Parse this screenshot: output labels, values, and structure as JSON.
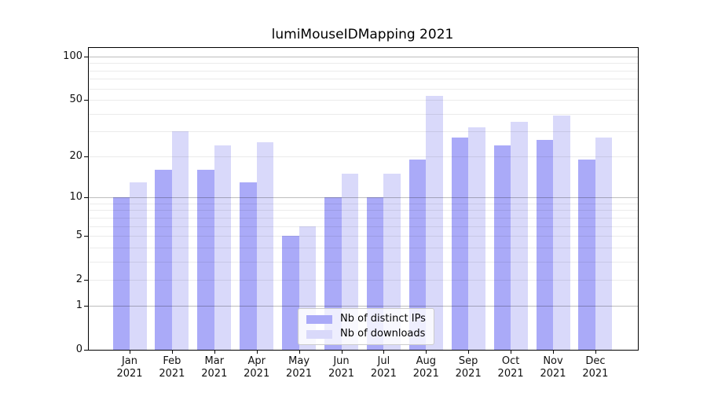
{
  "title": "lumiMouseIDMapping 2021",
  "y_axis": {
    "tick_labels": [
      "100",
      "50",
      "20",
      "10",
      "5",
      "2",
      "1",
      "0"
    ]
  },
  "x_axis": {
    "tick_labels": [
      "Jan 2021",
      "Feb 2021",
      "Mar 2021",
      "Apr 2021",
      "May 2021",
      "Jun 2021",
      "Jul 2021",
      "Aug 2021",
      "Sep 2021",
      "Oct 2021",
      "Nov 2021",
      "Dec 2021"
    ]
  },
  "legend": {
    "items": [
      {
        "label": "Nb of distinct IPs",
        "color": "#aaaaf8"
      },
      {
        "label": "Nb of downloads",
        "color": "#d9d9fa"
      }
    ]
  },
  "colors": {
    "distinct_ips_bar": "#aaaaf8",
    "downloads_bar": "#d9d9fa",
    "axis_frame": "#000000"
  },
  "chart_data": {
    "type": "bar",
    "title": "lumiMouseIDMapping 2021",
    "y_scale": "log10(value+1)",
    "grid": true,
    "legend_position": "lower center",
    "categories": [
      "Jan 2021",
      "Feb 2021",
      "Mar 2021",
      "Apr 2021",
      "May 2021",
      "Jun 2021",
      "Jul 2021",
      "Aug 2021",
      "Sep 2021",
      "Oct 2021",
      "Nov 2021",
      "Dec 2021"
    ],
    "series": [
      {
        "name": "Nb of distinct IPs",
        "color": "#aaaaf8",
        "values": [
          10,
          16,
          16,
          13,
          5,
          10,
          10,
          19,
          27,
          24,
          26,
          19
        ]
      },
      {
        "name": "Nb of downloads",
        "color": "#d9d9fa",
        "values": [
          13,
          30,
          24,
          25,
          6,
          15,
          15,
          53,
          32,
          35,
          39,
          27
        ]
      }
    ],
    "yticks": [
      0,
      1,
      2,
      5,
      10,
      20,
      50,
      100
    ],
    "major_gridlines": [
      1,
      10,
      100
    ],
    "minor_gridlines": [
      2,
      3,
      4,
      5,
      6,
      7,
      8,
      9,
      20,
      30,
      40,
      50,
      60,
      70,
      80,
      90
    ],
    "ylim": [
      0,
      114
    ],
    "xlabel": "",
    "ylabel": ""
  }
}
